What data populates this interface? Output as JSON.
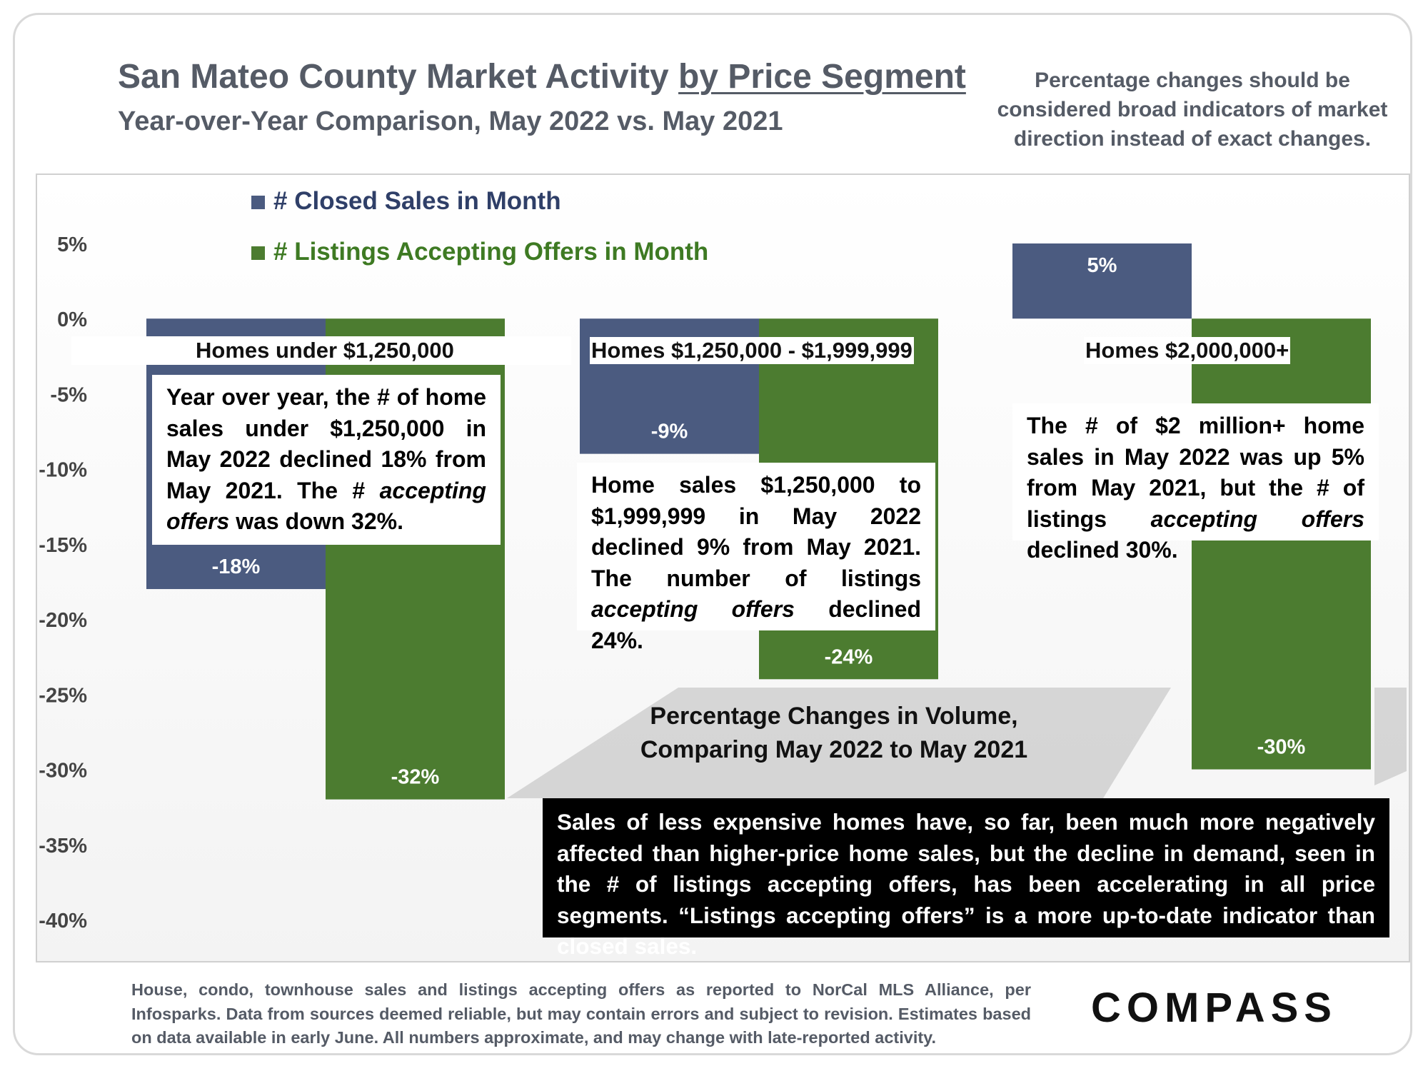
{
  "header": {
    "title_main": "San Mateo County Market Activity ",
    "title_underlined": "by Price Segment",
    "subtitle": "Year-over-Year Comparison, May 2022 vs. May 2021",
    "note": "Percentage changes should be considered broad indicators of market direction instead of exact changes."
  },
  "colors": {
    "closed_sales": "#4b5b80",
    "listings_accepting": "#4c7c30",
    "legend_closed_text": "#2f3f68",
    "legend_listings_text": "#3e7a23"
  },
  "chart_data": {
    "type": "bar",
    "categories": [
      "Homes under $1,250,000",
      "Homes $1,250,000 - $1,999,999",
      "Homes $2,000,000+"
    ],
    "series": [
      {
        "name": "# Closed Sales in Month",
        "values": [
          -18,
          -9,
          5
        ],
        "labels": [
          "-18%",
          "-9%",
          "5%"
        ]
      },
      {
        "name": "# Listings Accepting Offers in Month",
        "values": [
          -32,
          -24,
          -30
        ],
        "labels": [
          "-32%",
          "-24%",
          "-30%"
        ]
      }
    ],
    "ylim": [
      -40,
      5
    ],
    "yticks": [
      5,
      0,
      -5,
      -10,
      -15,
      -20,
      -25,
      -30,
      -35,
      -40
    ],
    "ytick_labels": [
      "5%",
      "0%",
      "-5%",
      "-10%",
      "-15%",
      "-20%",
      "-25%",
      "-30%",
      "-35%",
      "-40%"
    ],
    "legend_position": "top-left",
    "caption": [
      "Percentage Changes in Volume,",
      "Comparing May 2022 to May 2021"
    ]
  },
  "annotations": {
    "box1": [
      "Year over year, the # of home sales under $1,250,000 in May 2022 declined 18% from May 2021. The # ",
      "accepting offers",
      " was down 32%."
    ],
    "box2": [
      "Home sales $1,250,000 to $1,999,999 in May 2022 declined 9% from May 2021. The number of listings ",
      "accepting offers",
      " declined 24%."
    ],
    "box3": [
      "The # of $2 million+ home sales in May 2022 was up 5% from May 2021, but the # of listings ",
      "accepting offers",
      " declined 30%."
    ],
    "summary": "Sales of less expensive homes have, so far, been much more negatively affected than higher-price home sales, but the decline in demand, seen in the # of listings accepting offers, has been accelerating in all price segments. “Listings accepting offers” is a more up-to-date indicator than closed sales."
  },
  "footer": {
    "text": "House, condo, townhouse sales and listings accepting offers as reported to NorCal MLS Alliance, per Infosparks. Data from sources deemed reliable, but may contain errors and subject to revision. Estimates based on data available in early June. All numbers approximate, and may change with late-reported activity.",
    "logo": "COMPASS"
  }
}
